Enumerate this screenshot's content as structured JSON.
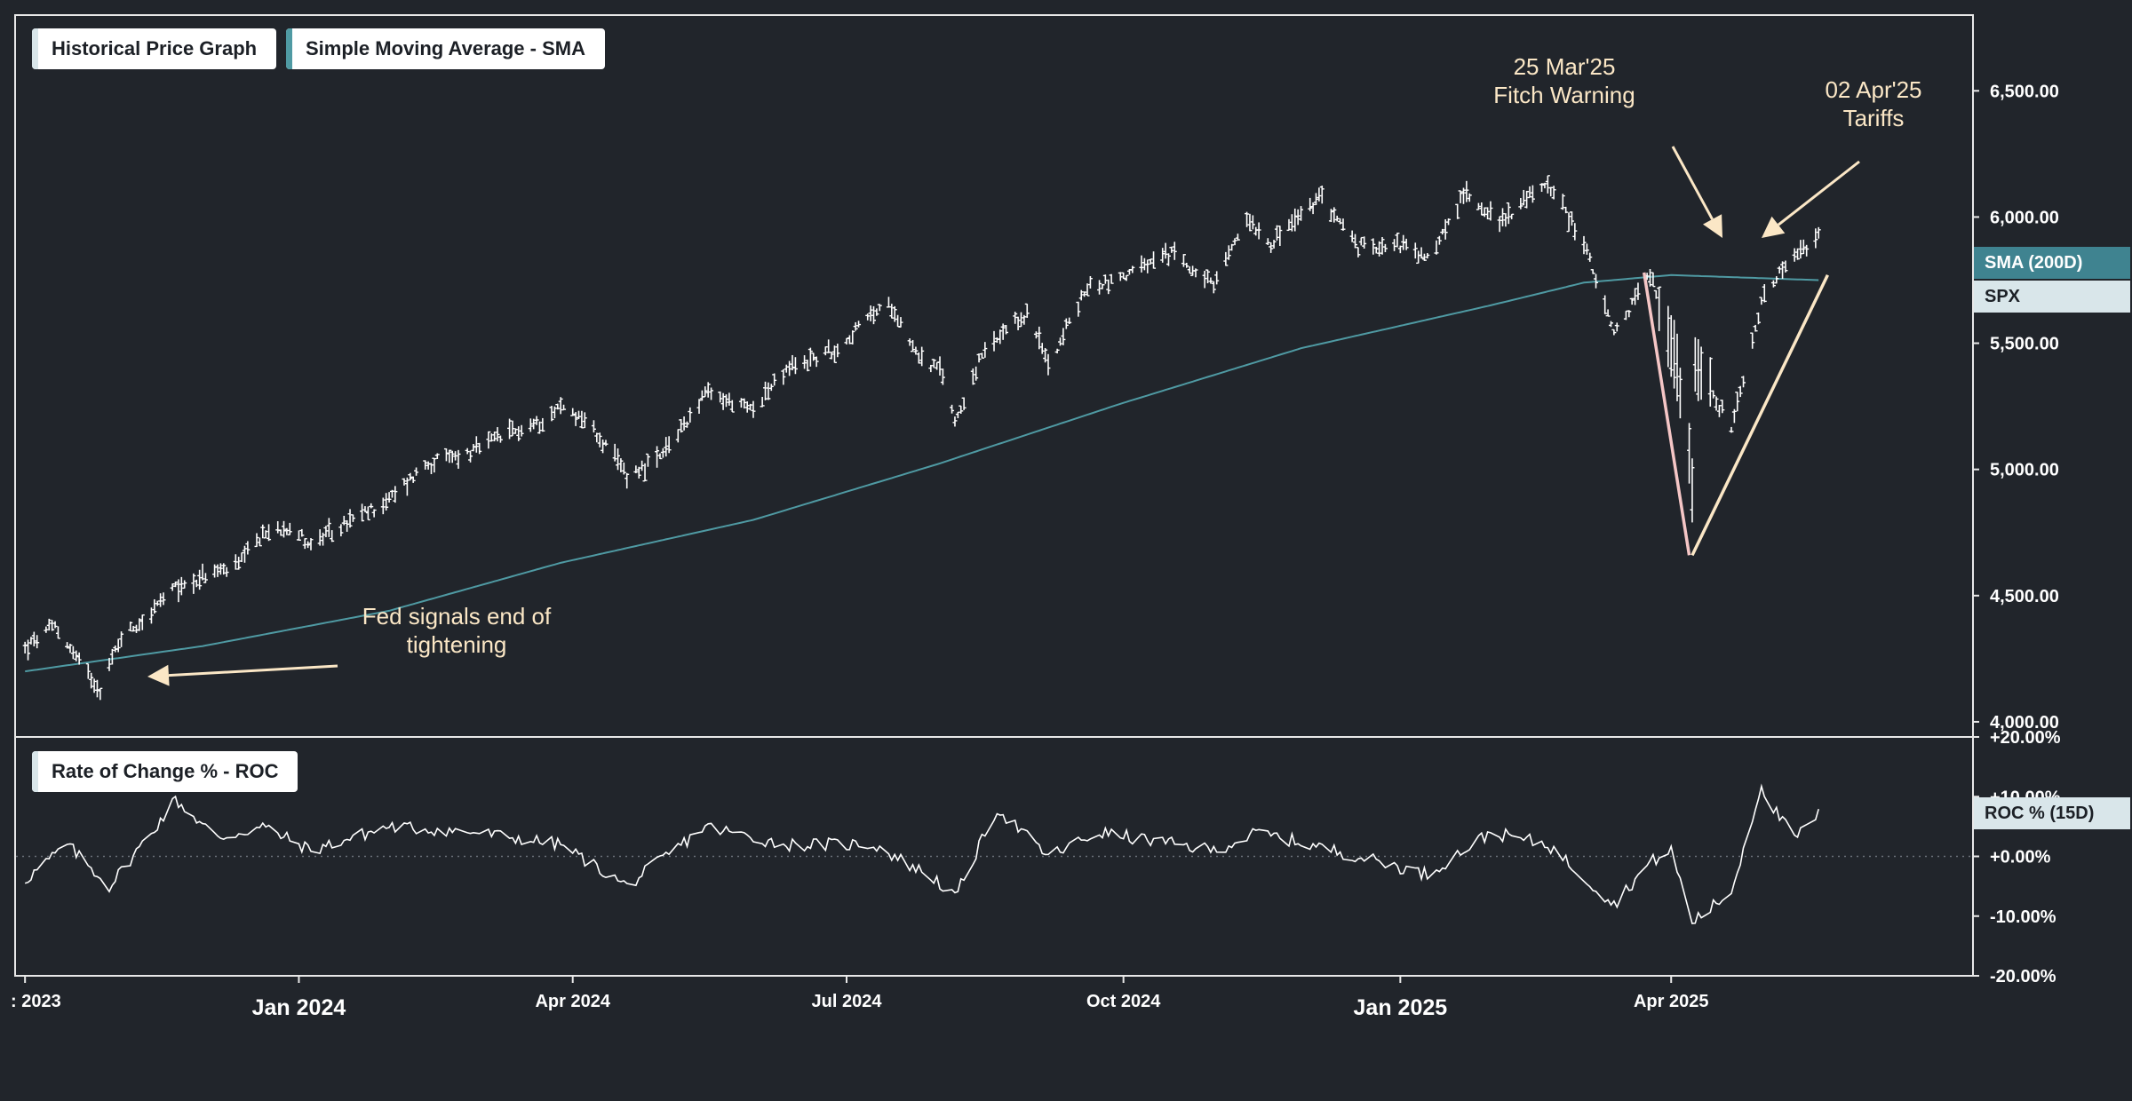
{
  "legend": {
    "price_graph_label": "Historical Price Graph",
    "sma_label": "Simple Moving Average - SMA",
    "roc_label": "Rate of Change % - ROC"
  },
  "tags": {
    "sma": "SMA (200D)",
    "spx": "SPX",
    "roc": "ROC % (15D)"
  },
  "colors": {
    "background": "#21252b",
    "price_bars": "#ffffff",
    "sma_line": "#4f9aa3",
    "roc_line": "#ffffff",
    "annotation_text": "#fbe7c6",
    "decline_line": "#f5c6c6",
    "rebound_line": "#fbe7c6",
    "sma_tag_bg": "#3f8390",
    "spx_tag_bg": "#d9e6ea",
    "roc_tag_bg": "#d9e6ea"
  },
  "chart_data": [
    {
      "type": "candlestick",
      "x_axis": {
        "ticks": [
          {
            "date": "2023-10-02",
            "label": ": 2023",
            "bold": false
          },
          {
            "date": "2024-01-01",
            "label": "Jan 2024",
            "bold": true
          },
          {
            "date": "2024-04-01",
            "label": "Apr 2024",
            "bold": false
          },
          {
            "date": "2024-07-01",
            "label": "Jul 2024",
            "bold": false
          },
          {
            "date": "2024-10-01",
            "label": "Oct 2024",
            "bold": false
          },
          {
            "date": "2025-01-01",
            "label": "Jan 2025",
            "bold": true
          },
          {
            "date": "2025-04-01",
            "label": "Apr 2025",
            "bold": false
          }
        ]
      },
      "y_axis": {
        "range": [
          3940,
          6800
        ],
        "ticks": [
          {
            "value": 4000,
            "label": "4,000.00"
          },
          {
            "value": 4500,
            "label": "4,500.00"
          },
          {
            "value": 5000,
            "label": "5,000.00"
          },
          {
            "value": 5500,
            "label": "5,500.00"
          },
          {
            "value": 6000,
            "label": "6,000.00"
          },
          {
            "value": 6500,
            "label": "6,500.00"
          }
        ]
      },
      "series": [
        {
          "name": "SPX",
          "anchors": [
            [
              "2023-10-02",
              4290
            ],
            [
              "2023-10-12",
              4380
            ],
            [
              "2023-10-20",
              4240
            ],
            [
              "2023-10-27",
              4130
            ],
            [
              "2023-11-03",
              4340
            ],
            [
              "2023-11-10",
              4400
            ],
            [
              "2023-11-20",
              4520
            ],
            [
              "2023-12-01",
              4580
            ],
            [
              "2023-12-12",
              4620
            ],
            [
              "2023-12-20",
              4740
            ],
            [
              "2023-12-29",
              4780
            ],
            [
              "2024-01-05",
              4700
            ],
            [
              "2024-01-19",
              4800
            ],
            [
              "2024-01-31",
              4880
            ],
            [
              "2024-02-12",
              5020
            ],
            [
              "2024-02-28",
              5070
            ],
            [
              "2024-03-08",
              5130
            ],
            [
              "2024-03-20",
              5180
            ],
            [
              "2024-03-28",
              5250
            ],
            [
              "2024-04-05",
              5200
            ],
            [
              "2024-04-19",
              4980
            ],
            [
              "2024-04-30",
              5040
            ],
            [
              "2024-05-15",
              5300
            ],
            [
              "2024-05-30",
              5240
            ],
            [
              "2024-06-12",
              5400
            ],
            [
              "2024-06-28",
              5480
            ],
            [
              "2024-07-10",
              5620
            ],
            [
              "2024-07-16",
              5650
            ],
            [
              "2024-07-25",
              5450
            ],
            [
              "2024-08-02",
              5380
            ],
            [
              "2024-08-06",
              5190
            ],
            [
              "2024-08-15",
              5450
            ],
            [
              "2024-08-30",
              5620
            ],
            [
              "2024-09-06",
              5420
            ],
            [
              "2024-09-19",
              5720
            ],
            [
              "2024-09-30",
              5760
            ],
            [
              "2024-10-18",
              5860
            ],
            [
              "2024-10-31",
              5720
            ],
            [
              "2024-11-11",
              6000
            ],
            [
              "2024-11-19",
              5900
            ],
            [
              "2024-12-06",
              6080
            ],
            [
              "2024-12-18",
              5880
            ],
            [
              "2024-12-31",
              5900
            ],
            [
              "2025-01-10",
              5830
            ],
            [
              "2025-01-23",
              6100
            ],
            [
              "2025-02-03",
              5980
            ],
            [
              "2025-02-19",
              6140
            ],
            [
              "2025-03-03",
              5900
            ],
            [
              "2025-03-13",
              5530
            ],
            [
              "2025-03-25",
              5780
            ],
            [
              "2025-04-03",
              5400
            ],
            [
              "2025-04-08",
              4950
            ],
            [
              "2025-04-09",
              5450
            ],
            [
              "2025-04-21",
              5150
            ],
            [
              "2025-05-02",
              5700
            ],
            [
              "2025-05-12",
              5840
            ],
            [
              "2025-05-20",
              5920
            ]
          ]
        },
        {
          "name": "SMA (200D)",
          "anchors": [
            [
              "2023-10-02",
              4200
            ],
            [
              "2023-11-30",
              4300
            ],
            [
              "2024-01-31",
              4440
            ],
            [
              "2024-03-28",
              4630
            ],
            [
              "2024-05-31",
              4800
            ],
            [
              "2024-07-31",
              5020
            ],
            [
              "2024-09-30",
              5260
            ],
            [
              "2024-11-29",
              5480
            ],
            [
              "2025-01-31",
              5650
            ],
            [
              "2025-03-03",
              5740
            ],
            [
              "2025-04-01",
              5770
            ],
            [
              "2025-05-20",
              5750
            ]
          ]
        }
      ],
      "annotations": [
        {
          "text_lines": [
            "Fed signals end of",
            "tightening"
          ],
          "date": "2023-10-30",
          "value": 4160
        },
        {
          "text_lines": [
            "25 Mar'25",
            "Fitch Warning"
          ],
          "date": "2025-03-21",
          "value": 5830
        },
        {
          "text_lines": [
            "02 Apr'25",
            "Tariffs"
          ],
          "date": "2025-04-01",
          "value": 5840
        }
      ],
      "trend_lines": [
        {
          "name": "decline",
          "from": [
            "2025-03-23",
            5780
          ],
          "to": [
            "2025-04-07",
            4660
          ]
        },
        {
          "name": "rebound",
          "from": [
            "2025-04-08",
            4660
          ],
          "to": [
            "2025-05-23",
            5770
          ]
        }
      ]
    },
    {
      "type": "line",
      "y_axis": {
        "range": [
          -20,
          20
        ],
        "ticks": [
          {
            "value": -20,
            "label": "-20.00%"
          },
          {
            "value": -10,
            "label": "-10.00%"
          },
          {
            "value": 0,
            "label": "+0.00%"
          },
          {
            "value": 10,
            "label": "+10.00%"
          },
          {
            "value": 20,
            "label": "+20.00%"
          }
        ],
        "zero_line": "dotted"
      },
      "series": [
        {
          "name": "ROC % (15D)",
          "anchors": [
            [
              "2023-10-02",
              -4
            ],
            [
              "2023-10-16",
              2
            ],
            [
              "2023-10-30",
              -5
            ],
            [
              "2023-11-13",
              4
            ],
            [
              "2023-11-21",
              9.5
            ],
            [
              "2023-12-05",
              3
            ],
            [
              "2023-12-20",
              5
            ],
            [
              "2024-01-05",
              1
            ],
            [
              "2024-01-31",
              5
            ],
            [
              "2024-02-29",
              4
            ],
            [
              "2024-03-28",
              2
            ],
            [
              "2024-04-19",
              -5
            ],
            [
              "2024-05-15",
              5
            ],
            [
              "2024-06-10",
              2
            ],
            [
              "2024-07-10",
              2
            ],
            [
              "2024-07-31",
              -4
            ],
            [
              "2024-08-06",
              -7
            ],
            [
              "2024-08-20",
              8
            ],
            [
              "2024-09-06",
              0
            ],
            [
              "2024-09-23",
              4
            ],
            [
              "2024-10-31",
              1
            ],
            [
              "2024-11-15",
              4
            ],
            [
              "2024-12-18",
              0
            ],
            [
              "2025-01-10",
              -3
            ],
            [
              "2025-01-31",
              4
            ],
            [
              "2025-02-19",
              2
            ],
            [
              "2025-03-13",
              -8
            ],
            [
              "2025-03-25",
              -1
            ],
            [
              "2025-04-01",
              1
            ],
            [
              "2025-04-08",
              -11
            ],
            [
              "2025-04-21",
              -6
            ],
            [
              "2025-05-01",
              12
            ],
            [
              "2025-05-05",
              8
            ],
            [
              "2025-05-12",
              3
            ],
            [
              "2025-05-20",
              7
            ]
          ]
        }
      ]
    }
  ]
}
